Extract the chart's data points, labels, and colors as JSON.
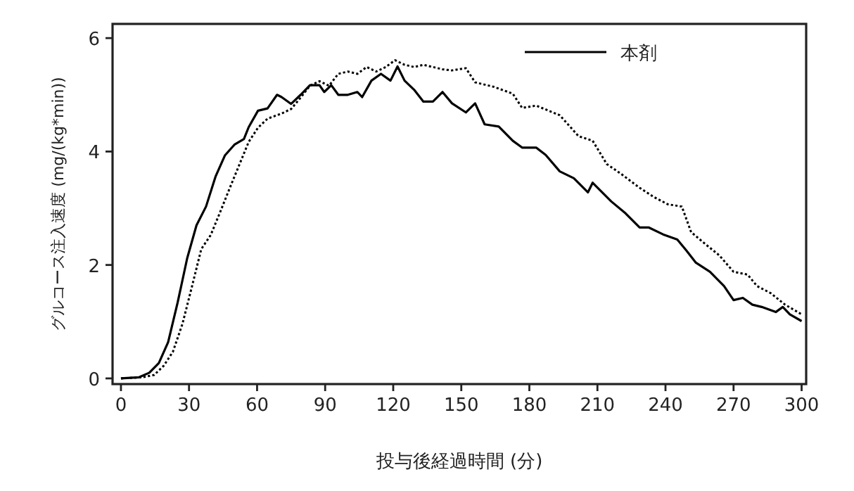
{
  "chart_data": {
    "type": "line",
    "xlabel": "投与後経過時間 (分)",
    "ylabel": "グルコース注入速度 (mg/(kg*min))",
    "xlim": [
      -3.7,
      302
    ],
    "ylim": [
      -0.1,
      6.25
    ],
    "xticks": [
      0,
      30,
      60,
      90,
      120,
      150,
      180,
      210,
      240,
      270,
      300
    ],
    "yticks": [
      0,
      2,
      4,
      6
    ],
    "grid": false,
    "legend": "top right",
    "series": [
      {
        "name": "本剤",
        "color": "#000000",
        "line_style": "solid",
        "x": [
          0,
          8,
          12.5,
          16.7,
          20.8,
          25,
          29.2,
          33.3,
          37.5,
          41.7,
          45.8,
          50,
          54.2,
          56.3,
          60.4,
          64.6,
          68.8,
          70.8,
          75,
          79.2,
          83.3,
          87.5,
          89.6,
          92.7,
          95.8,
          100,
          104.2,
          106.3,
          110.4,
          114.6,
          118.8,
          121.9,
          125,
          129.2,
          133.3,
          137.5,
          141.7,
          145.9,
          152,
          156.1,
          160.3,
          166.5,
          172.7,
          176.8,
          183,
          187.2,
          193.4,
          199.6,
          205.8,
          207.9,
          216.1,
          222.4,
          228.6,
          232.7,
          238.9,
          245.2,
          249.3,
          253.4,
          259.6,
          265.8,
          270,
          274.1,
          278.3,
          282.4,
          288.6,
          291.7,
          294.8,
          300
        ],
        "values": [
          0,
          0.02,
          0.1,
          0.27,
          0.64,
          1.34,
          2.12,
          2.7,
          3.03,
          3.56,
          3.93,
          4.12,
          4.22,
          4.43,
          4.72,
          4.76,
          5.0,
          4.96,
          4.84,
          5.0,
          5.17,
          5.17,
          5.05,
          5.17,
          5.0,
          5.0,
          5.05,
          4.96,
          5.25,
          5.37,
          5.25,
          5.5,
          5.25,
          5.09,
          4.88,
          4.88,
          5.05,
          4.85,
          4.69,
          4.85,
          4.48,
          4.44,
          4.19,
          4.07,
          4.07,
          3.94,
          3.65,
          3.53,
          3.28,
          3.45,
          3.12,
          2.91,
          2.66,
          2.66,
          2.54,
          2.45,
          2.25,
          2.04,
          1.88,
          1.63,
          1.38,
          1.42,
          1.3,
          1.26,
          1.17,
          1.26,
          1.13,
          1.01
        ]
      },
      {
        "color": "#000000",
        "line_style": "dotted",
        "x": [
          0,
          9.4,
          14.6,
          18.8,
          22.9,
          27.1,
          31.3,
          35.4,
          39.6,
          43.8,
          47.9,
          52.1,
          56.3,
          60.4,
          64.6,
          70.8,
          75,
          79.2,
          83.3,
          87.5,
          91.7,
          95.8,
          100,
          104.2,
          108.3,
          112.5,
          116.7,
          120.8,
          125,
          129.2,
          133.3,
          141.7,
          145.9,
          152,
          156.1,
          164.4,
          172.7,
          176.8,
          183,
          193.4,
          201.7,
          207.9,
          214.1,
          220.3,
          228.6,
          234.8,
          241,
          247.2,
          251.3,
          257.5,
          263.7,
          270,
          276.2,
          280.3,
          286.5,
          292.7,
          300
        ],
        "values": [
          0,
          0.02,
          0.06,
          0.22,
          0.47,
          0.96,
          1.62,
          2.28,
          2.53,
          2.94,
          3.35,
          3.76,
          4.17,
          4.42,
          4.58,
          4.67,
          4.75,
          4.95,
          5.16,
          5.24,
          5.16,
          5.37,
          5.41,
          5.37,
          5.49,
          5.41,
          5.49,
          5.61,
          5.53,
          5.49,
          5.53,
          5.45,
          5.43,
          5.47,
          5.22,
          5.14,
          5.02,
          4.77,
          4.81,
          4.64,
          4.27,
          4.19,
          3.78,
          3.61,
          3.36,
          3.2,
          3.07,
          3.03,
          2.58,
          2.37,
          2.17,
          1.88,
          1.83,
          1.63,
          1.5,
          1.3,
          1.13
        ]
      }
    ]
  }
}
